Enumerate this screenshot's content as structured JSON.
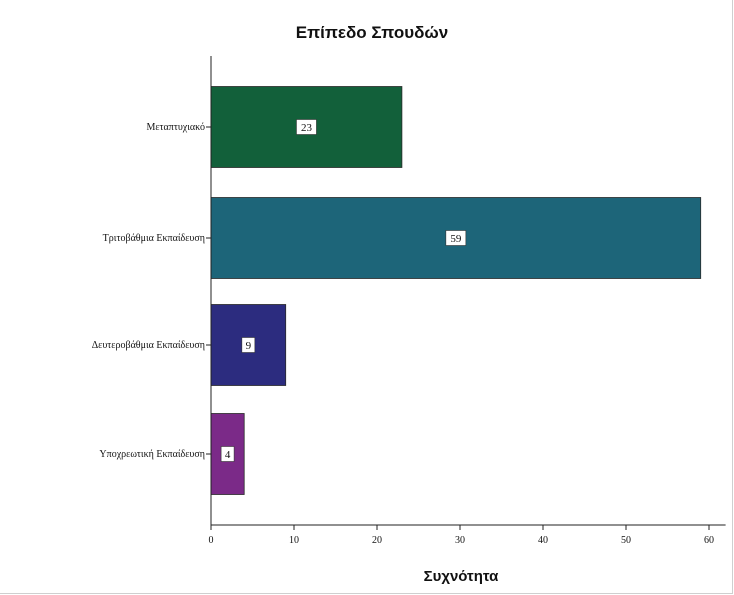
{
  "chart_data": {
    "type": "bar",
    "orientation": "horizontal",
    "title": "Επίπεδο Σπουδών",
    "xlabel": "Συχνότητα",
    "ylabel": "",
    "categories": [
      "Μεταπτυχιακό",
      "Τριτοβάθμια Εκπαίδευση",
      "Δευτεροβάθμια Εκπαίδευση",
      "Υποχρεωτική Εκπαίδευση"
    ],
    "values": [
      23,
      59,
      9,
      4
    ],
    "colors": [
      "#12603a",
      "#1d6579",
      "#2c2c7f",
      "#7b2a88"
    ],
    "xlim": [
      0,
      62
    ],
    "xticks": [
      0,
      10,
      20,
      30,
      40,
      50,
      60
    ],
    "grid": false,
    "data_labels": true
  }
}
